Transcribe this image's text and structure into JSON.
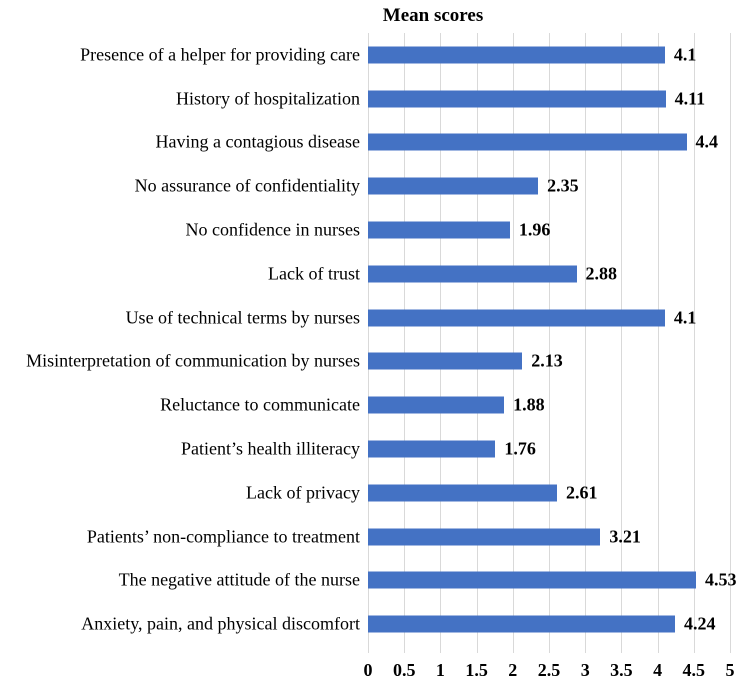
{
  "chart_data": {
    "type": "bar",
    "orientation": "horizontal",
    "title": "Mean scores",
    "categories": [
      "Presence of a helper for providing care",
      "History of hospitalization",
      "Having a contagious disease",
      "No assurance of confidentiality",
      "No confidence in nurses",
      "Lack of trust",
      "Use of technical terms by nurses",
      "Misinterpretation of communication by nurses",
      "Reluctance to communicate",
      "Patient’s health illiteracy",
      "Lack of privacy",
      "Patients’ non-compliance to treatment",
      "The negative attitude of the nurse",
      "Anxiety, pain, and physical discomfort"
    ],
    "values": [
      4.1,
      4.11,
      4.4,
      2.35,
      1.96,
      2.88,
      4.1,
      2.13,
      1.88,
      1.76,
      2.61,
      3.21,
      4.53,
      4.24
    ],
    "value_labels": [
      "4.1",
      "4.11",
      "4.4",
      "2.35",
      "1.96",
      "2.88",
      "4.1",
      "2.13",
      "1.88",
      "1.76",
      "2.61",
      "3.21",
      "4.53",
      "4.24"
    ],
    "xlabel": "",
    "ylabel": "",
    "xlim": [
      0,
      5
    ],
    "x_ticks": [
      "0",
      "0.5",
      "1",
      "1.5",
      "2",
      "2.5",
      "3",
      "3.5",
      "4",
      "4.5",
      "5"
    ],
    "grid": "vertical",
    "legend": "none",
    "colors": {
      "bar": "#4472c4",
      "gridline": "#d9d9d9",
      "text": "#000000",
      "background": "#ffffff"
    }
  }
}
